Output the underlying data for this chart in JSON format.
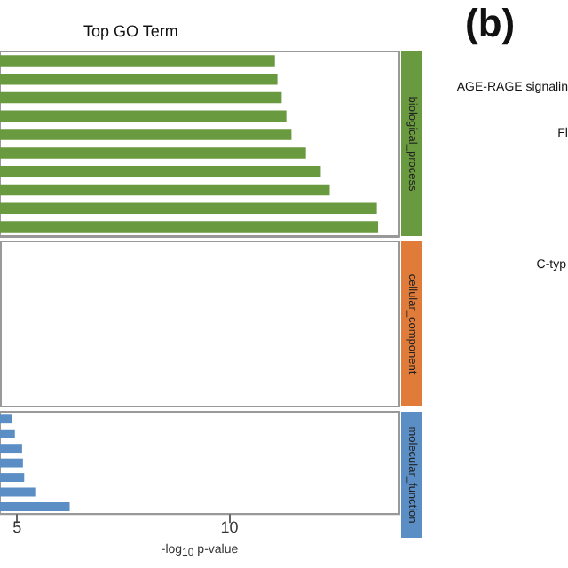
{
  "chart_data": [
    {
      "type": "bar",
      "orientation": "horizontal",
      "title": "Top GO Term",
      "subtitle": "biological_process",
      "color": "#6a9a3f",
      "categories": [
        null,
        null,
        null,
        null,
        null,
        null,
        null,
        null,
        null,
        null
      ],
      "values": [
        11.07,
        11.13,
        11.23,
        11.34,
        11.46,
        11.8,
        12.15,
        12.36,
        13.47,
        13.5
      ],
      "xlim": [
        4.6,
        14
      ],
      "tick_labels": false,
      "annotations": [
        "(b)",
        "AGE-RAGE signalin",
        "Fl"
      ]
    },
    {
      "type": "other",
      "subtitle": "cellular_component",
      "color": "#e07b39",
      "annotations": [
        "C-typ"
      ]
    },
    {
      "type": "bar",
      "orientation": "horizontal",
      "subtitle": "molecular_function",
      "xlabel": "-log$_{10}$ p-value",
      "color": "#5b8ec5",
      "categories": [
        null,
        null,
        null,
        null,
        null,
        null,
        null
      ],
      "values": [
        4.88,
        4.95,
        5.12,
        5.14,
        5.17,
        5.45,
        6.24
      ],
      "xlim": [
        4.6,
        14
      ],
      "xticks": [
        5,
        10
      ],
      "tick_labels": "x"
    }
  ]
}
